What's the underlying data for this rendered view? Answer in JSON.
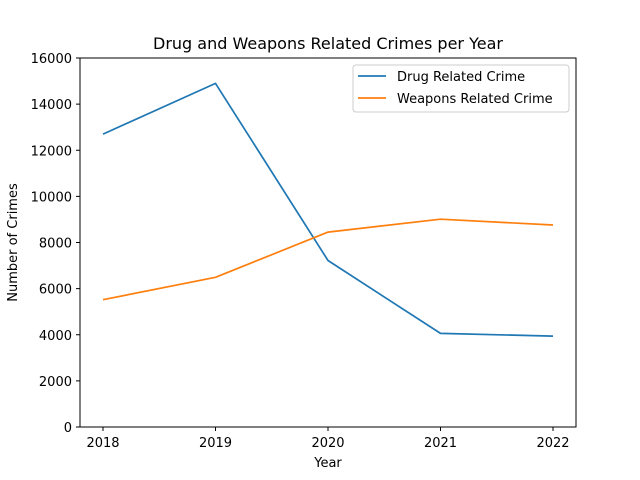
{
  "chart_data": {
    "type": "line",
    "title": "Drug and Weapons Related Crimes per Year",
    "xlabel": "Year",
    "ylabel": "Number of Crimes",
    "x": [
      "2018",
      "2019",
      "2020",
      "2021",
      "2022"
    ],
    "ylim": [
      0,
      16000
    ],
    "yticks": [
      "0",
      "2000",
      "4000",
      "6000",
      "8000",
      "10000",
      "12000",
      "14000",
      "16000"
    ],
    "grid": false,
    "legend_position": "top-right",
    "series": [
      {
        "name": "Drug Related Crime",
        "color": "#1f77b4",
        "values": [
          12700,
          14900,
          7220,
          4060,
          3940
        ]
      },
      {
        "name": "Weapons Related Crime",
        "color": "#ff7f0e",
        "values": [
          5520,
          6490,
          8450,
          9010,
          8760
        ]
      }
    ]
  }
}
